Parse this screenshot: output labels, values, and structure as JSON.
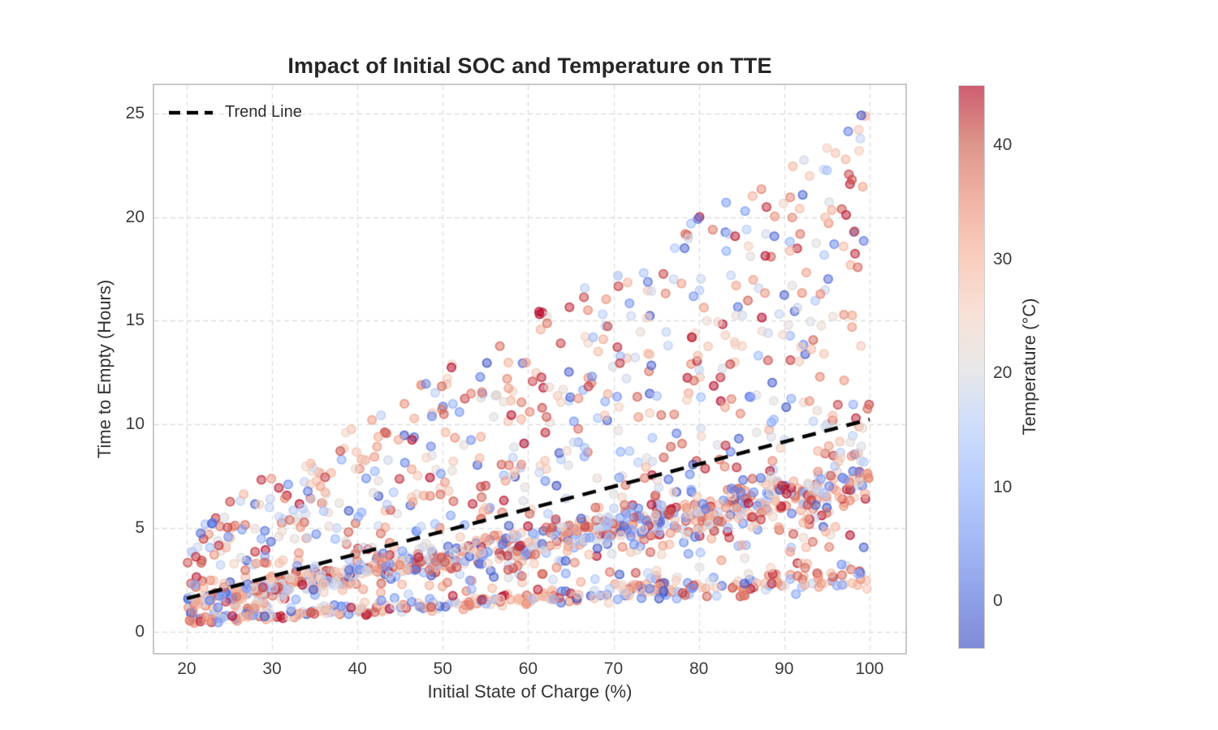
{
  "chart_data": {
    "type": "scatter",
    "title": "Impact of Initial SOC and Temperature on TTE",
    "xlabel": "Initial State of Charge (%)",
    "ylabel": "Time to Empty (Hours)",
    "axes": {
      "xlim": [
        16.2,
        104.2
      ],
      "ylim": [
        -1.0,
        26.35
      ],
      "xticks": [
        20,
        30,
        40,
        50,
        60,
        70,
        80,
        90,
        100
      ],
      "yticks": [
        0,
        5,
        10,
        15,
        20,
        25
      ],
      "grid": "dashed"
    },
    "legend": {
      "position": "upper-left",
      "entries": [
        {
          "label": "Trend Line",
          "style": "dashed",
          "color": "#000000"
        }
      ]
    },
    "trend_line": {
      "label": "Trend Line",
      "x": [
        20,
        100
      ],
      "y": [
        1.62,
        10.25
      ],
      "color": "#000000",
      "style": "dashed"
    },
    "colorbar": {
      "label": "Temperature (°C)",
      "vmin": -4.2,
      "vmax": 45.3,
      "ticks": [
        0,
        10,
        20,
        30,
        40
      ],
      "colormap": "coolwarm",
      "colormap_stops": [
        [
          0.0,
          "#3a4cc0"
        ],
        [
          0.1,
          "#5773e0"
        ],
        [
          0.2,
          "#7696f6"
        ],
        [
          0.3,
          "#96b5ff"
        ],
        [
          0.4,
          "#b6ccfa"
        ],
        [
          0.5,
          "#dddcdc"
        ],
        [
          0.6,
          "#f4d0c0"
        ],
        [
          0.7,
          "#f5b199"
        ],
        [
          0.8,
          "#e98a74"
        ],
        [
          0.9,
          "#cf5d52"
        ],
        [
          1.0,
          "#b40426"
        ]
      ],
      "display_stops": [
        [
          0.0,
          "#7f8bd6"
        ],
        [
          0.1,
          "#92a3e9"
        ],
        [
          0.2,
          "#a6baf6"
        ],
        [
          0.3,
          "#bacefe"
        ],
        [
          0.4,
          "#cfdefa"
        ],
        [
          0.5,
          "#e9e8e8"
        ],
        [
          0.6,
          "#f8e0d6"
        ],
        [
          0.7,
          "#f8ccbd"
        ],
        [
          0.8,
          "#f0b3a5"
        ],
        [
          0.9,
          "#dd9489"
        ],
        [
          1.0,
          "#ce5d72"
        ]
      ]
    },
    "points_summary": {
      "n_points": 1850,
      "soc_range": [
        20,
        100
      ],
      "tte_range": [
        0.35,
        25.2
      ],
      "structure": "fan of TTE = slope * SOC with three load modes: tight high-load stripe (slope ~0.026), dense medium-load band (slope 0.05-0.088), sparse variable-load fan (slope 0.033-0.252)"
    },
    "generator": {
      "seed": 42,
      "n_points": 1850,
      "soc_dist": {
        "dist": "uniform",
        "min": 20,
        "max": 100
      },
      "slope_components": [
        {
          "name": "high-load-stripe",
          "weight": 0.17,
          "dist": "normal",
          "mean": 0.0265,
          "sd": 0.0028,
          "clip": [
            0.02,
            0.033
          ]
        },
        {
          "name": "medium-load-band",
          "weight": 0.38,
          "dist": "normal",
          "mean": 0.0715,
          "sd": 0.0075,
          "clip": [
            0.05,
            0.088
          ]
        },
        {
          "name": "variable-load-fan",
          "weight": 0.45,
          "dist": "uniform",
          "min": 0.033,
          "max": 0.252
        }
      ],
      "tte_noise_sd": 0.05,
      "temperature_components": [
        {
          "weight": 0.27,
          "dist": "uniform",
          "min": -4.2,
          "max": 16.0
        },
        {
          "weight": 0.17,
          "dist": "uniform",
          "min": 16.0,
          "max": 24.0
        },
        {
          "weight": 0.56,
          "dist": "uniform",
          "min": 24.0,
          "max": 45.3
        }
      ]
    },
    "style": {
      "background": "#ffffff",
      "grid_color": "#dedede",
      "spine_color": "#c9c9c9",
      "trend_color": "#000000",
      "marker_radius_px": 5.2,
      "marker_fill_alpha": 0.5,
      "marker_edge_alpha": 0.8
    }
  }
}
